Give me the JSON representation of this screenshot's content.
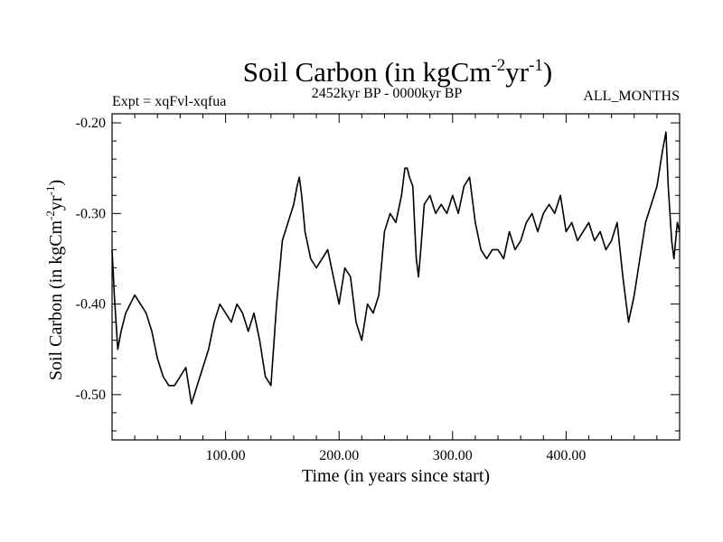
{
  "chart_data": {
    "type": "line",
    "title": {
      "main": "Soil Carbon (in kgCm",
      "sup1": "-2",
      "mid": "yr",
      "sup2": "-1",
      "end": ")"
    },
    "left_note": "Expt = xqFvl-xqfua",
    "center_note": "2452kyr BP - 0000kyr BP",
    "right_note": "ALL_MONTHS",
    "xlabel": "Time (in years since start)",
    "ylabel": {
      "main": "Soil Carbon (in kgCm",
      "sup1": "-2",
      "mid": "yr",
      "sup2": "-1",
      "end": ")"
    },
    "xlim": [
      0,
      500
    ],
    "ylim": [
      -0.55,
      -0.19
    ],
    "x_ticks": [
      100,
      200,
      300,
      400
    ],
    "x_tick_labels": [
      "100.00",
      "200.00",
      "300.00",
      "400.00"
    ],
    "y_ticks": [
      -0.5,
      -0.4,
      -0.3,
      -0.2
    ],
    "y_tick_labels": [
      "-0.50",
      "-0.40",
      "-0.30",
      "-0.20"
    ],
    "series": [
      {
        "name": "Soil Carbon",
        "color": "#000000",
        "x": [
          0,
          2,
          5,
          8,
          12,
          16,
          20,
          25,
          30,
          35,
          40,
          45,
          50,
          55,
          60,
          65,
          70,
          75,
          80,
          85,
          90,
          95,
          100,
          105,
          110,
          115,
          120,
          125,
          130,
          135,
          140,
          145,
          150,
          155,
          160,
          163,
          165,
          167,
          170,
          175,
          180,
          185,
          190,
          195,
          200,
          205,
          210,
          215,
          220,
          225,
          230,
          235,
          240,
          245,
          250,
          255,
          258,
          260,
          262,
          265,
          268,
          270,
          272,
          275,
          280,
          285,
          290,
          295,
          300,
          305,
          310,
          315,
          318,
          320,
          325,
          330,
          335,
          340,
          345,
          350,
          355,
          360,
          365,
          370,
          375,
          380,
          385,
          390,
          395,
          400,
          405,
          410,
          415,
          420,
          425,
          430,
          435,
          440,
          445,
          450,
          455,
          460,
          465,
          470,
          475,
          480,
          485,
          488,
          490,
          493,
          495,
          498,
          500
        ],
        "y": [
          -0.34,
          -0.39,
          -0.45,
          -0.43,
          -0.41,
          -0.4,
          -0.39,
          -0.4,
          -0.41,
          -0.43,
          -0.46,
          -0.48,
          -0.49,
          -0.49,
          -0.48,
          -0.47,
          -0.51,
          -0.49,
          -0.47,
          -0.45,
          -0.42,
          -0.4,
          -0.41,
          -0.42,
          -0.4,
          -0.41,
          -0.43,
          -0.41,
          -0.44,
          -0.48,
          -0.49,
          -0.4,
          -0.33,
          -0.31,
          -0.29,
          -0.27,
          -0.26,
          -0.28,
          -0.32,
          -0.35,
          -0.36,
          -0.35,
          -0.34,
          -0.37,
          -0.4,
          -0.36,
          -0.37,
          -0.42,
          -0.44,
          -0.4,
          -0.41,
          -0.39,
          -0.32,
          -0.3,
          -0.31,
          -0.28,
          -0.25,
          -0.25,
          -0.26,
          -0.27,
          -0.35,
          -0.37,
          -0.34,
          -0.29,
          -0.28,
          -0.3,
          -0.29,
          -0.3,
          -0.28,
          -0.3,
          -0.27,
          -0.26,
          -0.29,
          -0.31,
          -0.34,
          -0.35,
          -0.34,
          -0.34,
          -0.35,
          -0.32,
          -0.34,
          -0.33,
          -0.31,
          -0.3,
          -0.32,
          -0.3,
          -0.29,
          -0.3,
          -0.28,
          -0.32,
          -0.31,
          -0.33,
          -0.32,
          -0.31,
          -0.33,
          -0.32,
          -0.34,
          -0.33,
          -0.31,
          -0.37,
          -0.42,
          -0.39,
          -0.35,
          -0.31,
          -0.29,
          -0.27,
          -0.23,
          -0.21,
          -0.27,
          -0.33,
          -0.35,
          -0.31,
          -0.32
        ]
      }
    ]
  }
}
